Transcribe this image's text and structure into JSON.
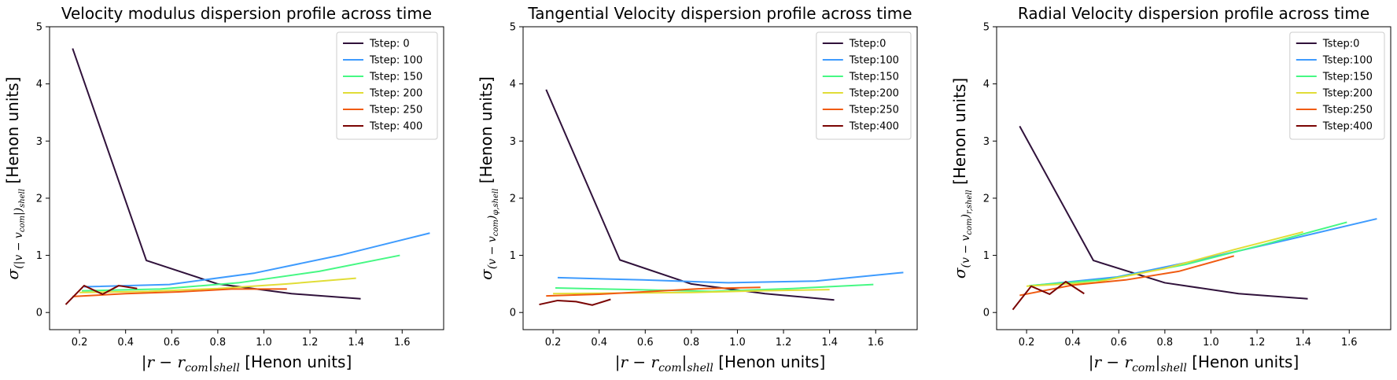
{
  "figure": {
    "panel_count": 3
  },
  "chart_data": [
    {
      "type": "line",
      "title": "Velocity modulus dispersion profile across time",
      "xlabel": "|r − r_com|_shell [Henon units]",
      "ylabel": "σ_(|v − v_com|)_shell [Henon units]",
      "xlim": [
        0.07,
        1.78
      ],
      "ylim": [
        -0.3,
        5
      ],
      "xticks": [
        0.2,
        0.4,
        0.6,
        0.8,
        1.0,
        1.2,
        1.4,
        1.6
      ],
      "xtick_labels": [
        "0.2",
        "0.4",
        "0.6",
        "0.8",
        "1.0",
        "1.2",
        "1.4",
        "1.6"
      ],
      "yticks": [
        0,
        1,
        2,
        3,
        4,
        5
      ],
      "ytick_labels": [
        "0",
        "1",
        "2",
        "3",
        "4",
        "5"
      ],
      "grid": false,
      "legend_position": "top-right",
      "series": [
        {
          "name": "Tstep: 0",
          "color": "#30123b",
          "x": [
            0.17,
            0.49,
            0.8,
            1.12,
            1.42
          ],
          "y": [
            4.62,
            0.91,
            0.5,
            0.33,
            0.24
          ]
        },
        {
          "name": "Tstep: 100",
          "color": "#3e9bfe",
          "x": [
            0.22,
            0.59,
            0.96,
            1.34,
            1.72
          ],
          "y": [
            0.45,
            0.49,
            0.69,
            1.01,
            1.39
          ]
        },
        {
          "name": "Tstep: 150",
          "color": "#46f884",
          "x": [
            0.21,
            0.55,
            0.89,
            1.24,
            1.59
          ],
          "y": [
            0.38,
            0.41,
            0.52,
            0.72,
            1.0
          ]
        },
        {
          "name": "Tstep: 200",
          "color": "#e1dd37",
          "x": [
            0.2,
            0.5,
            0.8,
            1.1,
            1.4
          ],
          "y": [
            0.35,
            0.37,
            0.42,
            0.5,
            0.6
          ]
        },
        {
          "name": "Tstep: 250",
          "color": "#f05b12",
          "x": [
            0.17,
            0.4,
            0.63,
            0.86,
            1.1
          ],
          "y": [
            0.28,
            0.33,
            0.36,
            0.41,
            0.41
          ]
        },
        {
          "name": "Tstep: 400",
          "color": "#7a0403",
          "x": [
            0.14,
            0.22,
            0.3,
            0.37,
            0.45
          ],
          "y": [
            0.14,
            0.47,
            0.32,
            0.47,
            0.42
          ]
        }
      ]
    },
    {
      "type": "line",
      "title": "Tangential Velocity dispersion profile across time",
      "xlabel": "|r − r_com|_shell [Henon units]",
      "ylabel": "σ_(v − v_com)_φ,shell [Henon units]",
      "xlim": [
        0.07,
        1.78
      ],
      "ylim": [
        -0.3,
        5
      ],
      "xticks": [
        0.2,
        0.4,
        0.6,
        0.8,
        1.0,
        1.2,
        1.4,
        1.6
      ],
      "xtick_labels": [
        "0.2",
        "0.4",
        "0.6",
        "0.8",
        "1.0",
        "1.2",
        "1.4",
        "1.6"
      ],
      "yticks": [
        0,
        1,
        2,
        3,
        4,
        5
      ],
      "ytick_labels": [
        "0",
        "1",
        "2",
        "3",
        "4",
        "5"
      ],
      "grid": false,
      "legend_position": "top-right",
      "series": [
        {
          "name": "Tstep:0",
          "color": "#30123b",
          "x": [
            0.17,
            0.49,
            0.8,
            1.12,
            1.42
          ],
          "y": [
            3.9,
            0.92,
            0.5,
            0.33,
            0.22
          ]
        },
        {
          "name": "Tstep:100",
          "color": "#3e9bfe",
          "x": [
            0.22,
            0.59,
            0.96,
            1.34,
            1.72
          ],
          "y": [
            0.61,
            0.57,
            0.52,
            0.55,
            0.7
          ]
        },
        {
          "name": "Tstep:150",
          "color": "#46f884",
          "x": [
            0.21,
            0.55,
            0.89,
            1.24,
            1.59
          ],
          "y": [
            0.43,
            0.4,
            0.37,
            0.42,
            0.49
          ]
        },
        {
          "name": "Tstep:200",
          "color": "#e1dd37",
          "x": [
            0.2,
            0.5,
            0.8,
            1.1,
            1.4
          ],
          "y": [
            0.33,
            0.34,
            0.35,
            0.38,
            0.4
          ]
        },
        {
          "name": "Tstep:250",
          "color": "#f05b12",
          "x": [
            0.17,
            0.4,
            0.63,
            0.86,
            1.1
          ],
          "y": [
            0.29,
            0.32,
            0.37,
            0.42,
            0.44
          ]
        },
        {
          "name": "Tstep:400",
          "color": "#7a0403",
          "x": [
            0.14,
            0.22,
            0.3,
            0.37,
            0.45
          ],
          "y": [
            0.14,
            0.21,
            0.19,
            0.13,
            0.23
          ]
        }
      ]
    },
    {
      "type": "line",
      "title": "Radial Velocity dispersion profile across time",
      "xlabel": "|r − r_com|_shell [Henon units]",
      "ylabel": "σ_(v − v_com)_r,shell [Henon units]",
      "xlim": [
        0.07,
        1.78
      ],
      "ylim": [
        -0.3,
        5
      ],
      "xticks": [
        0.2,
        0.4,
        0.6,
        0.8,
        1.0,
        1.2,
        1.4,
        1.6
      ],
      "xtick_labels": [
        "0.2",
        "0.4",
        "0.6",
        "0.8",
        "1.0",
        "1.2",
        "1.4",
        "1.6"
      ],
      "yticks": [
        0,
        1,
        2,
        3,
        4,
        5
      ],
      "ytick_labels": [
        "0",
        "1",
        "2",
        "3",
        "4",
        "5"
      ],
      "grid": false,
      "legend_position": "top-right",
      "series": [
        {
          "name": "Tstep:0",
          "color": "#30123b",
          "x": [
            0.17,
            0.49,
            0.8,
            1.12,
            1.42
          ],
          "y": [
            3.26,
            0.91,
            0.52,
            0.33,
            0.24
          ]
        },
        {
          "name": "Tstep:100",
          "color": "#3e9bfe",
          "x": [
            0.22,
            0.59,
            0.96,
            1.34,
            1.72
          ],
          "y": [
            0.47,
            0.62,
            0.93,
            1.28,
            1.64
          ]
        },
        {
          "name": "Tstep:150",
          "color": "#46f884",
          "x": [
            0.21,
            0.55,
            0.89,
            1.24,
            1.59
          ],
          "y": [
            0.47,
            0.58,
            0.84,
            1.2,
            1.58
          ]
        },
        {
          "name": "Tstep:200",
          "color": "#e1dd37",
          "x": [
            0.2,
            0.5,
            0.8,
            1.1,
            1.4
          ],
          "y": [
            0.46,
            0.53,
            0.77,
            1.1,
            1.41
          ]
        },
        {
          "name": "Tstep:250",
          "color": "#f05b12",
          "x": [
            0.17,
            0.4,
            0.63,
            0.86,
            1.1
          ],
          "y": [
            0.3,
            0.48,
            0.57,
            0.72,
            0.99
          ]
        },
        {
          "name": "Tstep:400",
          "color": "#7a0403",
          "x": [
            0.14,
            0.22,
            0.3,
            0.37,
            0.45
          ],
          "y": [
            0.05,
            0.46,
            0.32,
            0.54,
            0.33
          ]
        }
      ]
    }
  ]
}
